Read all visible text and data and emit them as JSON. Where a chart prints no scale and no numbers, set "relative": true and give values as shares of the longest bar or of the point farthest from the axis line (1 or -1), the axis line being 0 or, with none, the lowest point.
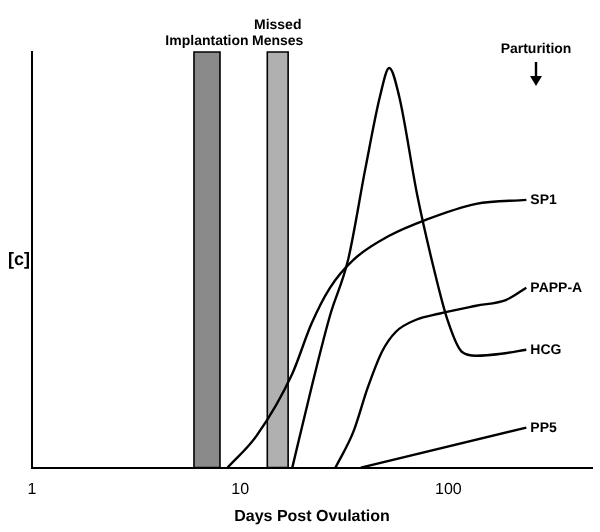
{
  "chart_data": {
    "type": "line",
    "relative": true,
    "log": "x",
    "xlabel": "Days Post Ovulation",
    "ylabel": "[c]",
    "xlim": [
      1,
      490
    ],
    "xticks": [
      1,
      10,
      100
    ],
    "grid": false,
    "legend": false,
    "marker": "none",
    "line_style": "solid",
    "series": [
      {
        "name": "SP1",
        "color": "#000000",
        "x": [
          8.7,
          12,
          17.8,
          22,
          27,
          35,
          52,
          78,
          136,
          237
        ],
        "values": [
          0,
          0.08,
          0.235,
          0.36,
          0.45,
          0.52,
          0.58,
          0.62,
          0.66,
          0.67
        ]
      },
      {
        "name": "PAPP-A",
        "color": "#000000",
        "x": [
          28.7,
          35,
          41,
          48,
          56,
          70,
          90,
          136,
          190,
          237
        ],
        "values": [
          0,
          0.09,
          0.2,
          0.29,
          0.34,
          0.37,
          0.385,
          0.405,
          0.42,
          0.45
        ]
      },
      {
        "name": "HCG",
        "color": "#000000",
        "x": [
          17.8,
          22,
          27,
          33,
          40,
          47,
          52,
          58,
          71,
          85,
          99,
          116,
          136,
          180,
          237
        ],
        "values": [
          0,
          0.2,
          0.38,
          0.52,
          0.75,
          0.93,
          1,
          0.93,
          0.68,
          0.5,
          0.37,
          0.29,
          0.28,
          0.285,
          0.295
        ]
      },
      {
        "name": "PP5",
        "color": "#000000",
        "x": [
          38,
          237
        ],
        "values": [
          0,
          0.1
        ]
      }
    ],
    "bands": [
      {
        "axis": "x",
        "from": 6,
        "to": 8,
        "label": "Implantation",
        "color": "#8a8a8a"
      },
      {
        "axis": "x",
        "from": 13.5,
        "to": 17,
        "label": "Missed\nMenses",
        "color": "#b0b0b0"
      }
    ],
    "annotations": [
      "Parturition"
    ]
  }
}
